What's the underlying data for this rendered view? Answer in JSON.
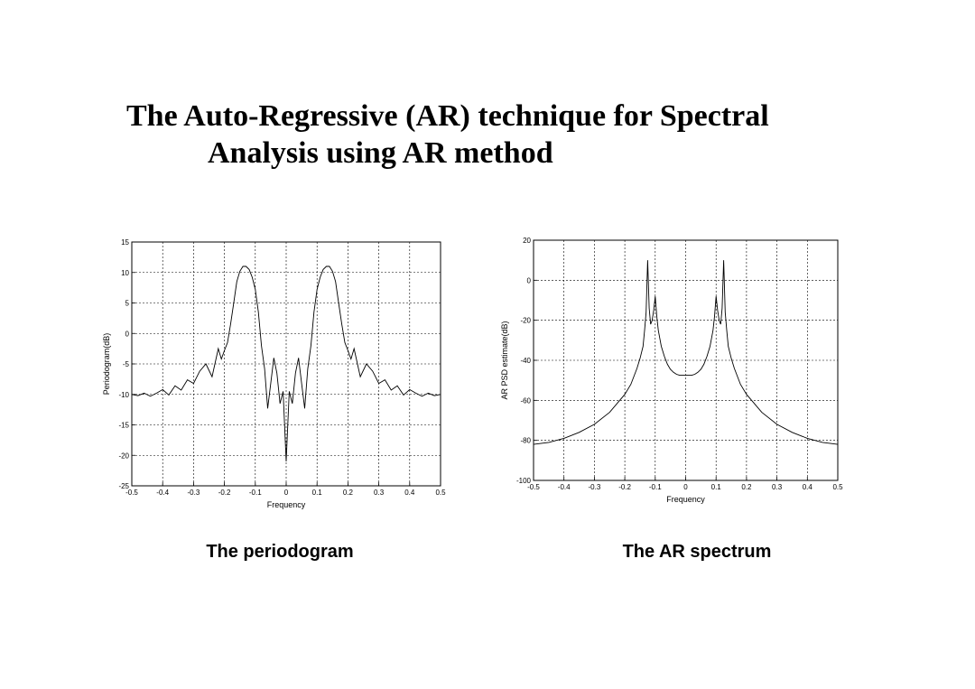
{
  "slide": {
    "title_line1": "The Auto-Regressive (AR) technique for Spectral",
    "title_line2": "Analysis using  AR method"
  },
  "captions": {
    "left": "The periodogram",
    "right": "The AR spectrum"
  },
  "chart_data": [
    {
      "type": "line",
      "xlabel": "Frequency",
      "ylabel": "Periodogram(dB)",
      "xlim": [
        -0.5,
        0.5
      ],
      "ylim": [
        -25,
        15
      ],
      "xticks": [
        -0.5,
        -0.4,
        -0.3,
        -0.2,
        -0.1,
        0,
        0.1,
        0.2,
        0.3,
        0.4,
        0.5
      ],
      "yticks": [
        -25,
        -20,
        -15,
        -10,
        -5,
        0,
        5,
        10,
        15
      ],
      "grid": true,
      "series": [
        {
          "x": [
            -0.5,
            -0.48,
            -0.46,
            -0.44,
            -0.42,
            -0.4,
            -0.38,
            -0.36,
            -0.34,
            -0.32,
            -0.3,
            -0.28,
            -0.26,
            -0.24,
            -0.22,
            -0.21,
            -0.2,
            -0.19,
            -0.18,
            -0.17,
            -0.16,
            -0.15,
            -0.14,
            -0.13,
            -0.12,
            -0.11,
            -0.1,
            -0.09,
            -0.08,
            -0.07,
            -0.06,
            -0.05,
            -0.04,
            -0.03,
            -0.02,
            -0.01,
            0,
            0.01,
            0.02,
            0.03,
            0.04,
            0.05,
            0.06,
            0.07,
            0.08,
            0.09,
            0.1,
            0.11,
            0.12,
            0.13,
            0.14,
            0.15,
            0.16,
            0.17,
            0.18,
            0.19,
            0.2,
            0.21,
            0.22,
            0.24,
            0.26,
            0.28,
            0.3,
            0.32,
            0.34,
            0.36,
            0.38,
            0.4,
            0.42,
            0.44,
            0.46,
            0.48,
            0.5
          ],
          "y": [
            -10,
            -10.2,
            -9.8,
            -10.3,
            -9.8,
            -9.2,
            -10.1,
            -8.6,
            -9.3,
            -7.6,
            -8.2,
            -6.2,
            -5,
            -7.1,
            -2.5,
            -4.2,
            -2.8,
            -1.5,
            1.5,
            5,
            8.5,
            10.2,
            11,
            11,
            10.5,
            9.2,
            7.2,
            3.5,
            -2,
            -5.8,
            -12.3,
            -8.2,
            -4,
            -6.5,
            -11.5,
            -9.5,
            -21,
            -9.5,
            -11.5,
            -6.5,
            -4,
            -8.2,
            -12.3,
            -5.8,
            -2,
            3.5,
            7.2,
            9.2,
            10.5,
            11,
            11,
            10.2,
            8.5,
            5,
            1.5,
            -1.5,
            -2.8,
            -4.2,
            -2.5,
            -7.1,
            -5,
            -6.2,
            -8.2,
            -7.6,
            -9.3,
            -8.6,
            -10.1,
            -9.2,
            -9.8,
            -10.3,
            -9.8,
            -10.2,
            -10
          ]
        }
      ]
    },
    {
      "type": "line",
      "xlabel": "Frequency",
      "ylabel": "AR PSD estimate(dB)",
      "xlim": [
        -0.5,
        0.5
      ],
      "ylim": [
        -100,
        20
      ],
      "xticks": [
        -0.5,
        -0.4,
        -0.3,
        -0.2,
        -0.1,
        0,
        0.1,
        0.2,
        0.3,
        0.4,
        0.5
      ],
      "yticks": [
        -100,
        -80,
        -60,
        -40,
        -20,
        0,
        20
      ],
      "grid": true,
      "series": [
        {
          "x": [
            -0.5,
            -0.45,
            -0.4,
            -0.35,
            -0.3,
            -0.25,
            -0.2,
            -0.18,
            -0.16,
            -0.15,
            -0.14,
            -0.135,
            -0.13,
            -0.125,
            -0.12,
            -0.115,
            -0.11,
            -0.105,
            -0.1,
            -0.095,
            -0.09,
            -0.08,
            -0.07,
            -0.06,
            -0.05,
            -0.04,
            -0.03,
            -0.02,
            -0.01,
            0,
            0.01,
            0.02,
            0.03,
            0.04,
            0.05,
            0.06,
            0.07,
            0.08,
            0.09,
            0.095,
            0.1,
            0.105,
            0.11,
            0.115,
            0.12,
            0.125,
            0.13,
            0.135,
            0.14,
            0.15,
            0.16,
            0.18,
            0.2,
            0.25,
            0.3,
            0.35,
            0.4,
            0.45,
            0.5
          ],
          "y": [
            -82,
            -81,
            -79,
            -76,
            -72,
            -66,
            -57,
            -52,
            -44,
            -39,
            -33,
            -25,
            -16,
            10,
            -14,
            -22,
            -20,
            -15,
            -8,
            -18,
            -25,
            -33,
            -38,
            -42,
            -44.5,
            -46,
            -47,
            -47.5,
            -47.5,
            -47.5,
            -47.5,
            -47.5,
            -47,
            -46,
            -44.5,
            -42,
            -38,
            -33,
            -25,
            -18,
            -8,
            -15,
            -20,
            -22,
            -14,
            10,
            -16,
            -25,
            -33,
            -39,
            -44,
            -52,
            -57,
            -66,
            -72,
            -76,
            -79,
            -81,
            -82
          ]
        }
      ]
    }
  ]
}
